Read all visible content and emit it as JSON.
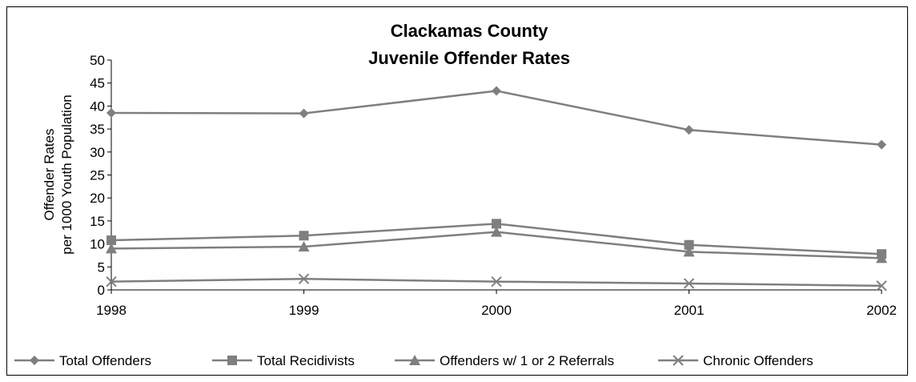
{
  "chart_data": {
    "type": "line",
    "title": "Clackamas County",
    "subtitle": "Juvenile Offender Rates",
    "xlabel": "",
    "ylabel_line1": "Offender Rates",
    "ylabel_line2": "per 1000 Youth Population",
    "categories": [
      "1998",
      "1999",
      "2000",
      "2001",
      "2002"
    ],
    "ylim": [
      0,
      50
    ],
    "yticks": [
      "0",
      "5",
      "10",
      "15",
      "20",
      "25",
      "30",
      "35",
      "40",
      "45",
      "50"
    ],
    "grid": false,
    "legend_position": "bottom",
    "series_color": "#7f7f7f",
    "series": [
      {
        "name": "Total Offenders",
        "marker": "diamond",
        "values": [
          38.5,
          38.4,
          43.3,
          34.8,
          31.6
        ]
      },
      {
        "name": "Total Recidivists",
        "marker": "square",
        "values": [
          10.8,
          11.8,
          14.4,
          9.8,
          7.8
        ]
      },
      {
        "name": "Offenders w/ 1 or 2 Referrals",
        "marker": "triangle",
        "values": [
          9.0,
          9.4,
          12.6,
          8.3,
          6.9
        ]
      },
      {
        "name": "Chronic Offenders",
        "marker": "x",
        "values": [
          1.8,
          2.4,
          1.8,
          1.4,
          0.9
        ]
      }
    ]
  }
}
